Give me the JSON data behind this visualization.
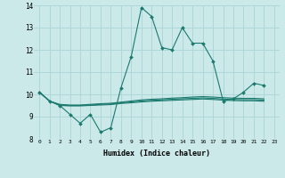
{
  "xlabel": "Humidex (Indice chaleur)",
  "background_color": "#cce9ea",
  "grid_color": "#aad4d6",
  "line_color": "#1a7a6e",
  "xlim": [
    -0.5,
    23.5
  ],
  "ylim": [
    8,
    14
  ],
  "yticks": [
    8,
    9,
    10,
    11,
    12,
    13,
    14
  ],
  "xticks": [
    0,
    1,
    2,
    3,
    4,
    5,
    6,
    7,
    8,
    9,
    10,
    11,
    12,
    13,
    14,
    15,
    16,
    17,
    18,
    19,
    20,
    21,
    22,
    23
  ],
  "y_main": [
    10.1,
    9.7,
    9.5,
    9.1,
    8.7,
    9.1,
    8.3,
    8.5,
    10.3,
    11.7,
    13.9,
    13.5,
    12.1,
    12.0,
    13.0,
    12.3,
    12.3,
    11.5,
    9.7,
    9.8,
    10.1,
    10.5,
    10.4
  ],
  "y_flat1": [
    10.1,
    9.7,
    9.55,
    9.52,
    9.52,
    9.55,
    9.58,
    9.6,
    9.65,
    9.7,
    9.75,
    9.78,
    9.8,
    9.83,
    9.85,
    9.88,
    9.9,
    9.88,
    9.85,
    9.83,
    9.82,
    9.82,
    9.8
  ],
  "y_flat2": [
    10.1,
    9.7,
    9.52,
    9.5,
    9.5,
    9.52,
    9.55,
    9.57,
    9.62,
    9.66,
    9.7,
    9.73,
    9.75,
    9.78,
    9.8,
    9.82,
    9.84,
    9.82,
    9.79,
    9.77,
    9.76,
    9.76,
    9.74
  ],
  "y_flat3": [
    10.1,
    9.7,
    9.5,
    9.48,
    9.48,
    9.5,
    9.52,
    9.54,
    9.59,
    9.62,
    9.66,
    9.69,
    9.71,
    9.73,
    9.75,
    9.77,
    9.79,
    9.77,
    9.74,
    9.72,
    9.71,
    9.71,
    9.69
  ]
}
